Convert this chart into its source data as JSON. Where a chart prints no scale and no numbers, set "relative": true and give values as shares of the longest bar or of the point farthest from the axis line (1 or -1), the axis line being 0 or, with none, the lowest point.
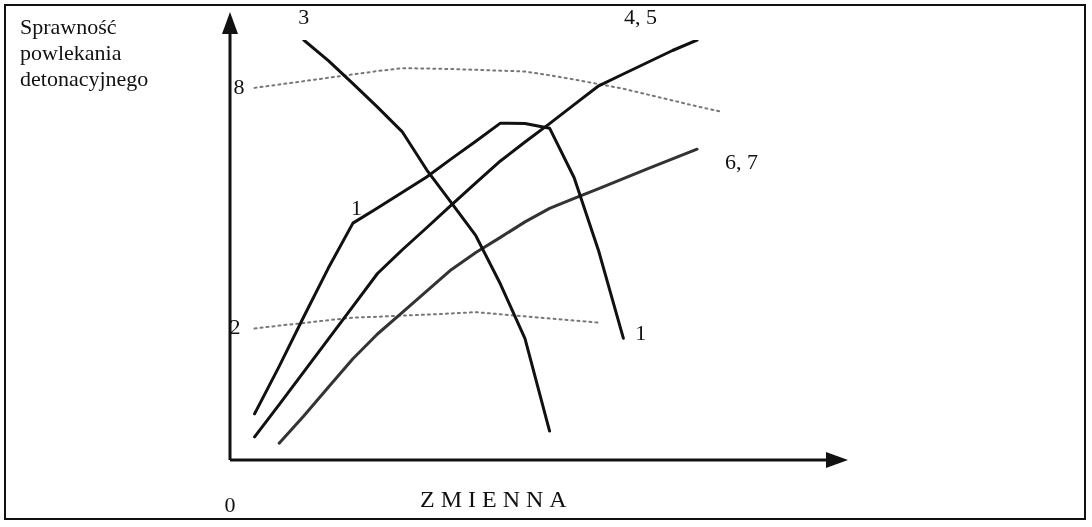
{
  "chart_data": {
    "type": "line",
    "relative": true,
    "ylabel": "Sprawność powlekania detonacyjnego",
    "xlabel": "ZMIENNA",
    "marker": "none",
    "categories": [
      null,
      null,
      null,
      null,
      null,
      null,
      null,
      null,
      null,
      null,
      null,
      null,
      null,
      null,
      null,
      null,
      null,
      null,
      null,
      null,
      null,
      null,
      null,
      null,
      null
    ],
    "series": [
      {
        "name": "1",
        "color": "#111111",
        "line_style": "solid",
        "values": [
          null,
          0.11,
          0.223,
          0.341,
          0.457,
          0.564,
          0.6,
          0.637,
          0.674,
          0.717,
          0.759,
          0.802,
          0.801,
          0.79,
          0.672,
          0.497,
          0.29,
          null,
          null,
          null,
          null,
          null,
          null,
          null,
          null
        ]
      },
      {
        "name": "3",
        "color": "#111111",
        "line_style": "solid",
        "values": [
          null,
          null,
          null,
          1,
          0.951,
          0.896,
          0.84,
          0.782,
          0.691,
          0.613,
          0.534,
          0.419,
          0.289,
          0.069,
          null,
          null,
          null,
          null,
          null,
          null,
          null,
          null,
          null,
          null,
          null
        ]
      },
      {
        "name": "4, 5",
        "color": "#111111",
        "line_style": "solid",
        "values": [
          null,
          0.055,
          0.132,
          0.21,
          0.288,
          0.366,
          0.444,
          0.5,
          0.553,
          0.607,
          0.66,
          0.712,
          0.757,
          0.801,
          0.846,
          0.891,
          0.919,
          0.947,
          0.975,
          1,
          null,
          null,
          null,
          null,
          null
        ]
      },
      {
        "name": "6, 7",
        "color": "#333333",
        "line_style": "solid",
        "values": [
          null,
          null,
          0.04,
          0.105,
          0.173,
          0.241,
          0.3,
          0.351,
          0.402,
          0.453,
          0.494,
          0.53,
          0.567,
          0.599,
          0.623,
          0.646,
          0.67,
          0.694,
          0.717,
          0.74,
          null,
          null,
          null,
          null,
          null
        ]
      },
      {
        "name": "8",
        "color": "#777777",
        "line_style": "dotted",
        "values": [
          null,
          0.886,
          0.894,
          0.902,
          0.91,
          0.918,
          0.926,
          0.933,
          0.932,
          0.931,
          0.929,
          0.927,
          0.925,
          0.916,
          0.906,
          0.895,
          0.884,
          0.87,
          0.856,
          0.842,
          0.829,
          null,
          null,
          null,
          null
        ]
      },
      {
        "name": "2",
        "color": "#777777",
        "line_style": "dotted",
        "values": [
          null,
          0.313,
          0.32,
          0.326,
          0.333,
          0.339,
          0.341,
          0.344,
          0.346,
          0.349,
          0.352,
          0.347,
          0.342,
          0.337,
          0.332,
          0.327,
          null,
          null,
          null,
          null,
          null,
          null,
          null,
          null,
          null
        ]
      }
    ],
    "annotations": [
      "0",
      "1"
    ]
  }
}
